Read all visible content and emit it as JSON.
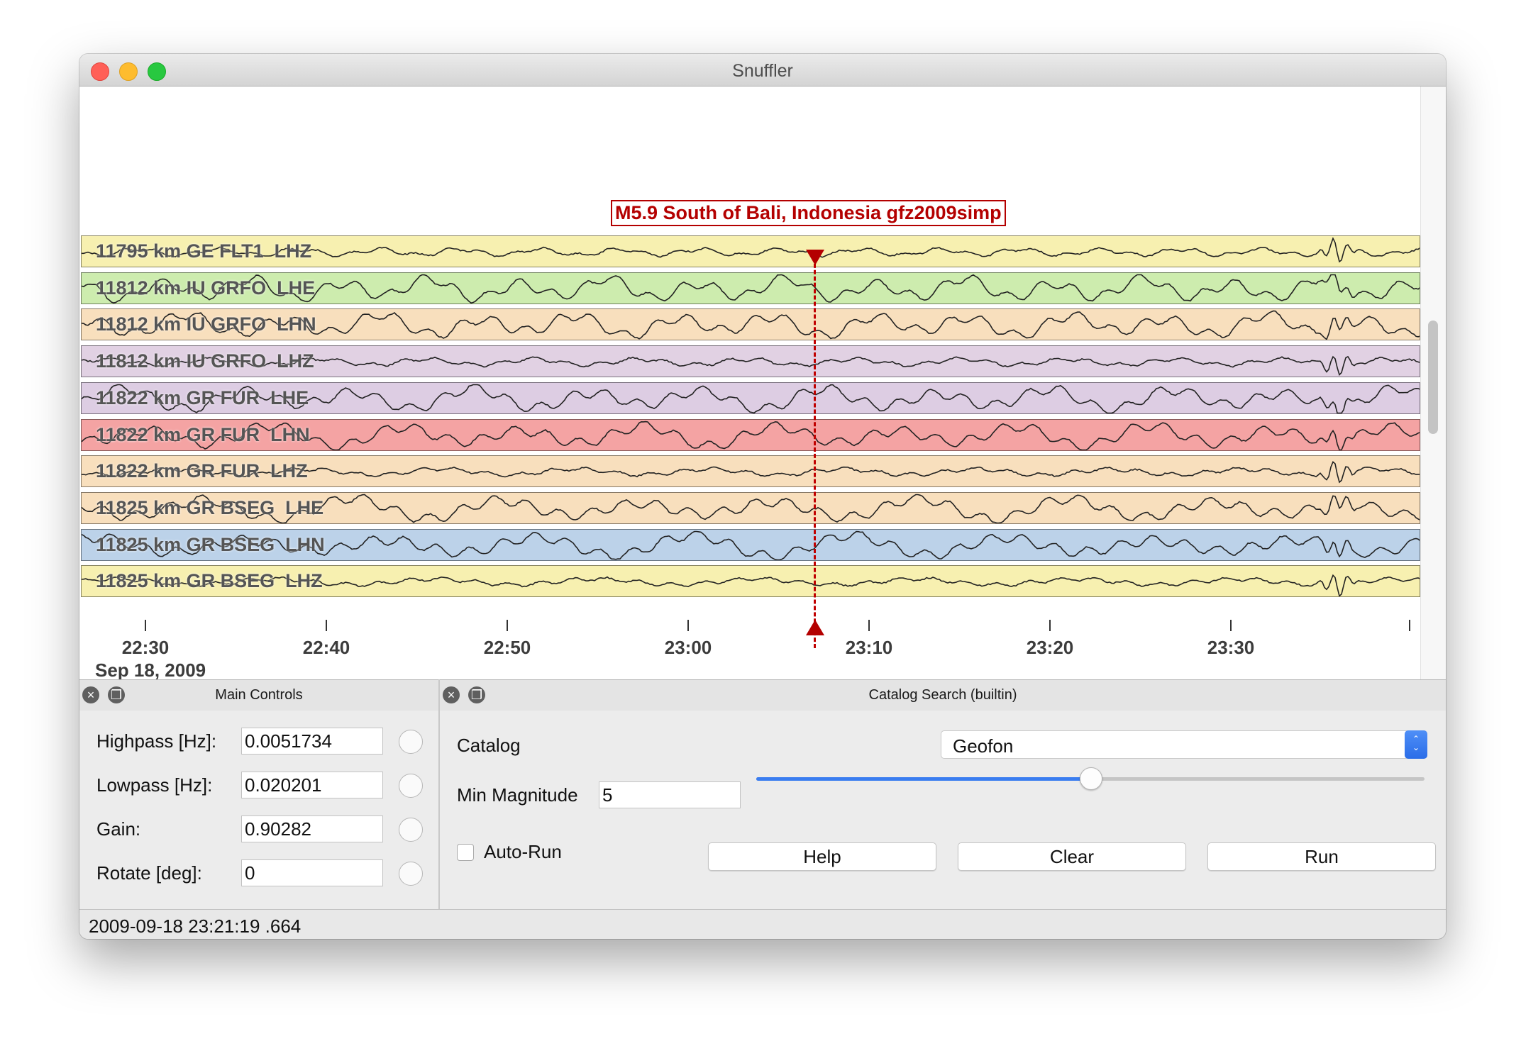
{
  "window": {
    "title": "Snuffler"
  },
  "event": {
    "label": "M5.9 South of Bali, Indonesia gfz2009simp",
    "marker_color": "#b40000"
  },
  "traces": [
    {
      "label": "11795 km GE FLT1  LHZ",
      "color": "#f7f0b0"
    },
    {
      "label": "11812 km IU GRFO  LHE",
      "color": "#cdecae"
    },
    {
      "label": "11812 km IU GRFO  LHN",
      "color": "#f8dfbd"
    },
    {
      "label": "11812 km IU GRFO  LHZ",
      "color": "#e1d1e3"
    },
    {
      "label": "11822 km GR FUR  LHE",
      "color": "#ddcde3"
    },
    {
      "label": "11822 km GR FUR  LHN",
      "color": "#f4a3a3"
    },
    {
      "label": "11822 km GR FUR  LHZ",
      "color": "#f8dfbd"
    },
    {
      "label": "11825 km GR BSEG  LHE",
      "color": "#f8dfbd"
    },
    {
      "label": "11825 km GR BSEG  LHN",
      "color": "#bcd2e9"
    },
    {
      "label": "11825 km GR BSEG  LHZ",
      "color": "#f7f0b0"
    }
  ],
  "time_axis": {
    "ticks": [
      "22:30",
      "22:40",
      "22:50",
      "23:00",
      "23:10",
      "23:20",
      "23:30"
    ],
    "date": "Sep 18, 2009"
  },
  "main_controls": {
    "title": "Main Controls",
    "fields": [
      {
        "label": "Highpass [Hz]:",
        "value": "0.0051734"
      },
      {
        "label": "Lowpass [Hz]:",
        "value": "0.020201"
      },
      {
        "label": "Gain:",
        "value": "0.90282"
      },
      {
        "label": "Rotate [deg]:",
        "value": "0"
      }
    ]
  },
  "catalog_search": {
    "title": "Catalog Search (builtin)",
    "catalog_label": "Catalog",
    "catalog_value": "Geofon",
    "min_magnitude_label": "Min Magnitude",
    "min_magnitude_value": "5",
    "slider_fraction": 0.5,
    "auto_run_label": "Auto-Run",
    "auto_run_checked": false,
    "help_label": "Help",
    "clear_label": "Clear",
    "run_label": "Run"
  },
  "status": {
    "text": "2009-09-18 23:21:19 .664"
  }
}
